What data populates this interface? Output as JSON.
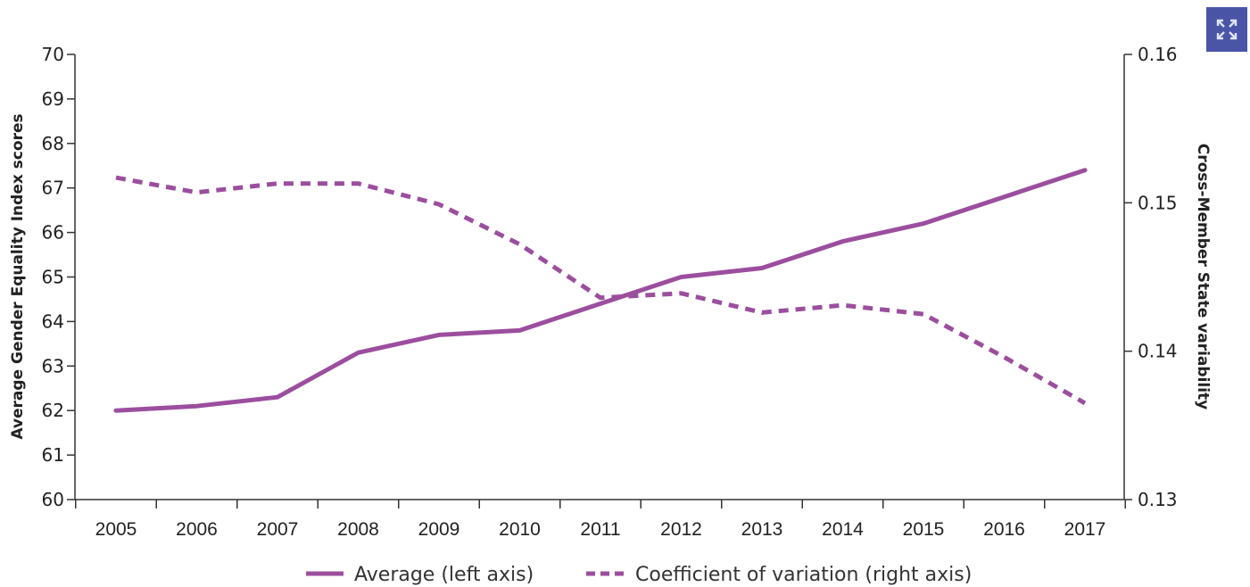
{
  "chart_data": {
    "type": "line",
    "title": "",
    "xlabel": "",
    "ylabel_left": "Average Gender Equality Index scores",
    "ylabel_right": "Cross-Member State variability",
    "x": [
      "2005",
      "2006",
      "2007",
      "2008",
      "2009",
      "2010",
      "2011",
      "2012",
      "2013",
      "2014",
      "2015",
      "2016",
      "2017"
    ],
    "ylim_left": [
      60,
      70
    ],
    "yticks_left": [
      "60",
      "61",
      "62",
      "63",
      "64",
      "65",
      "66",
      "67",
      "68",
      "69",
      "70"
    ],
    "ylim_right": [
      0.13,
      0.16
    ],
    "yticks_right": [
      "0.13",
      "0.14",
      "0.15",
      "0.16"
    ],
    "grid": false,
    "legend_position": "bottom",
    "series": [
      {
        "name": "Average (left axis)",
        "axis": "left",
        "style": "solid",
        "color": "#9c4e9e",
        "values": [
          62.0,
          62.1,
          62.3,
          63.3,
          63.7,
          63.8,
          64.4,
          65.0,
          65.2,
          65.8,
          66.2,
          66.8,
          67.4
        ]
      },
      {
        "name": "Coefficient of variation (right axis)",
        "axis": "right",
        "style": "dashed",
        "color": "#9c4e9e",
        "values": [
          0.1517,
          0.1507,
          0.1513,
          0.1513,
          0.1499,
          0.1472,
          0.1436,
          0.1439,
          0.1426,
          0.1431,
          0.1425,
          0.1396,
          0.1365
        ]
      }
    ]
  },
  "toolbar": {
    "expand_icon": "expand-icon",
    "accent_color": "#4a55a8"
  }
}
